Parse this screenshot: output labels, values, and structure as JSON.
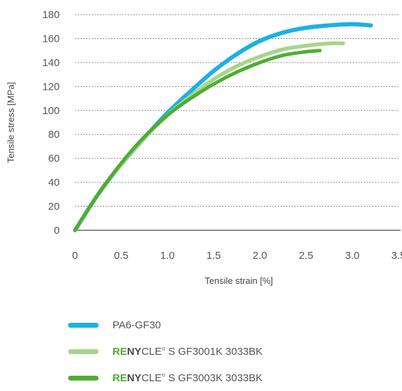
{
  "chart_data": {
    "type": "line",
    "title": "",
    "xlabel": "Tensile strain [%]",
    "ylabel": "Tensile stress [MPa]",
    "xlim": [
      0,
      3.5
    ],
    "ylim": [
      0,
      180
    ],
    "xticks": [
      "0",
      "0.5",
      "1.0",
      "1.5",
      "2.0",
      "2.5",
      "3.0",
      "3.5"
    ],
    "yticks": [
      "0",
      "20",
      "40",
      "60",
      "80",
      "100",
      "120",
      "140",
      "160",
      "180"
    ],
    "grid": "horizontal dotted",
    "legend_position": "bottom",
    "series": [
      {
        "name": "PA6-GF30",
        "color": "#1ab1e6",
        "x": [
          0,
          0.25,
          0.5,
          0.75,
          1.0,
          1.25,
          1.5,
          1.75,
          2.0,
          2.25,
          2.5,
          2.75,
          3.0,
          3.2
        ],
        "y": [
          0,
          30,
          55,
          77,
          98,
          116,
          133,
          147,
          158,
          165,
          169,
          171,
          172,
          171
        ]
      },
      {
        "name": "RENYCLE® S GF3001K 3033BK",
        "color": "#a6d68a",
        "x": [
          0,
          0.25,
          0.5,
          0.75,
          1.0,
          1.25,
          1.5,
          1.75,
          2.0,
          2.25,
          2.5,
          2.75,
          2.9
        ],
        "y": [
          0,
          30,
          55,
          77,
          96,
          112,
          126,
          137,
          145,
          151,
          154,
          156,
          156
        ]
      },
      {
        "name": "RENYCLE® S GF3003K 3033BK",
        "color": "#4fad32",
        "x": [
          0,
          0.25,
          0.5,
          0.75,
          1.0,
          1.25,
          1.5,
          1.75,
          2.0,
          2.25,
          2.5,
          2.65
        ],
        "y": [
          0,
          30,
          56,
          78,
          96,
          110,
          122,
          132,
          140,
          146,
          149,
          150
        ]
      }
    ]
  },
  "legend": {
    "items": [
      {
        "label": "PA6-GF30",
        "color": "#1ab1e6"
      },
      {
        "prefix_re": "RE",
        "prefix_ny": "NY",
        "rest": "CLE",
        "reg": "®",
        "suffix": " S GF3001K 3033BK",
        "color": "#a6d68a"
      },
      {
        "prefix_re": "RE",
        "prefix_ny": "NY",
        "rest": "CLE",
        "reg": "®",
        "suffix": " S GF3003K 3033BK",
        "color": "#4fad32"
      }
    ]
  }
}
